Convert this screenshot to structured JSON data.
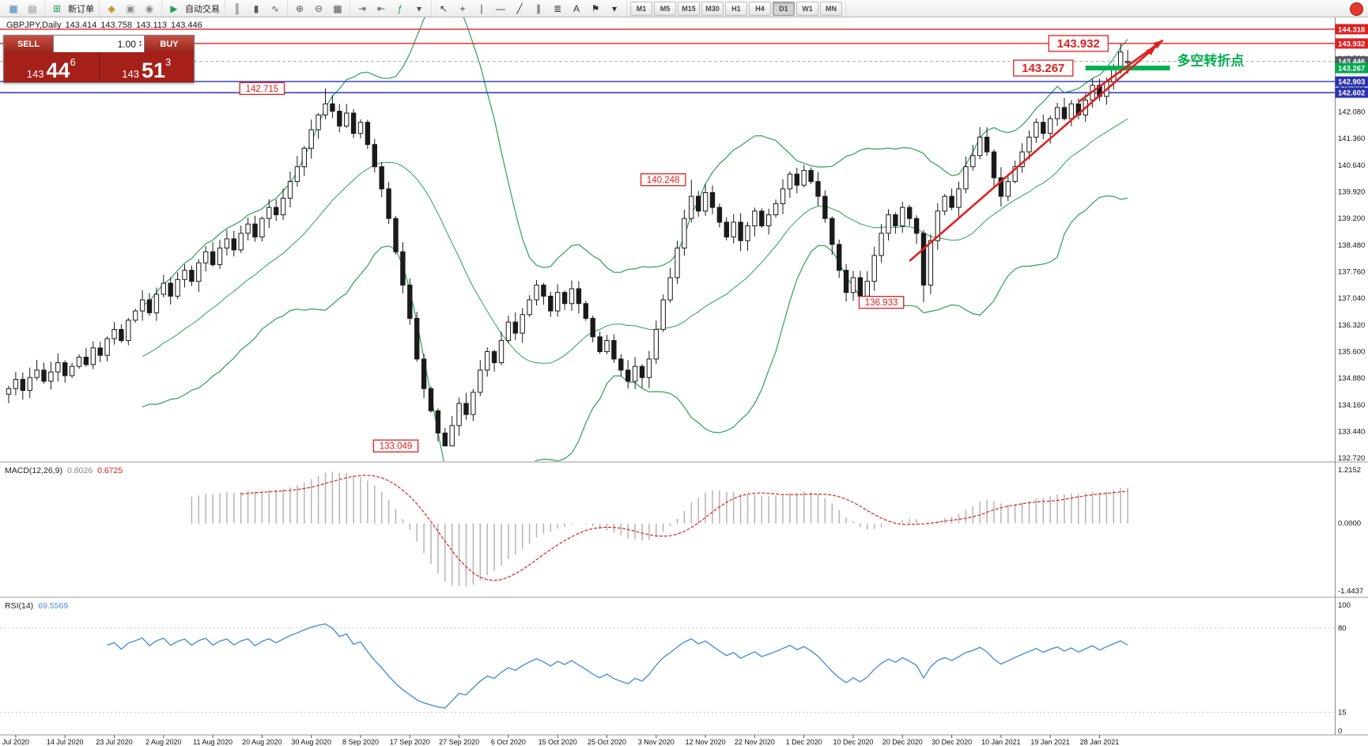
{
  "toolbar": {
    "groups": [
      {
        "items": [
          {
            "name": "new-chart-icon",
            "glyph": "▦",
            "color": "#4a7ebb"
          },
          {
            "name": "profiles-icon",
            "glyph": "▤",
            "color": "#8a8a8a"
          }
        ]
      },
      {
        "items": [
          {
            "name": "new-order-button",
            "glyph": "⊞",
            "color": "#1f9d55",
            "label": "新订单"
          }
        ]
      },
      {
        "items": [
          {
            "name": "expert-advisors-icon",
            "glyph": "◆",
            "color": "#c09a2e"
          },
          {
            "name": "data-window-icon",
            "glyph": "▣",
            "color": "#8a8a8a"
          },
          {
            "name": "strategy-tester-icon",
            "glyph": "◉",
            "color": "#8a8a8a"
          }
        ]
      },
      {
        "items": [
          {
            "name": "autotrading-button",
            "glyph": "▶",
            "color": "#1f9d55",
            "label": "自动交易"
          }
        ]
      },
      {
        "items": [
          {
            "name": "bar-chart-icon",
            "glyph": "║",
            "color": "#555555"
          },
          {
            "name": "candlestick-chart-icon",
            "glyph": "▮",
            "color": "#555555"
          },
          {
            "name": "line-chart-icon",
            "glyph": "∿",
            "color": "#555555"
          }
        ]
      },
      {
        "items": [
          {
            "name": "zoom-in-icon",
            "glyph": "⊕",
            "color": "#555555"
          },
          {
            "name": "zoom-out-icon",
            "glyph": "⊖",
            "color": "#555555"
          },
          {
            "name": "tile-windows-icon",
            "glyph": "▦",
            "color": "#555555"
          }
        ]
      },
      {
        "items": [
          {
            "name": "auto-scroll-icon",
            "glyph": "⇥",
            "color": "#555555"
          },
          {
            "name": "chart-shift-icon",
            "glyph": "⇤",
            "color": "#555555"
          },
          {
            "name": "indicators-icon",
            "glyph": "ƒ",
            "color": "#1f9d55"
          },
          {
            "name": "indicators-dropdown",
            "glyph": "▾",
            "color": "#555555"
          }
        ]
      },
      {
        "items": [
          {
            "name": "cursor-icon",
            "glyph": "↖",
            "color": "#333333"
          },
          {
            "name": "crosshair-icon",
            "glyph": "+",
            "color": "#333333"
          },
          {
            "name": "vertical-line-icon",
            "glyph": "∣",
            "color": "#333333"
          },
          {
            "name": "horizontal-line-icon",
            "glyph": "―",
            "color": "#333333"
          },
          {
            "name": "trendline-icon",
            "glyph": "╱",
            "color": "#333333"
          },
          {
            "name": "channel-icon",
            "glyph": "∥",
            "color": "#333333"
          },
          {
            "name": "fibonacci-icon",
            "glyph": "≣",
            "color": "#333333"
          },
          {
            "name": "text-icon",
            "glyph": "A",
            "color": "#333333"
          },
          {
            "name": "label-icon",
            "glyph": "⚑",
            "color": "#333333"
          },
          {
            "name": "shapes-dropdown",
            "glyph": "▾",
            "color": "#333333"
          }
        ]
      }
    ],
    "timeframes": {
      "items": [
        {
          "name": "timeframe-m1",
          "label": "M1",
          "active": false
        },
        {
          "name": "timeframe-m5",
          "label": "M5",
          "active": false
        },
        {
          "name": "timeframe-m15",
          "label": "M15",
          "active": false
        },
        {
          "name": "timeframe-m30",
          "label": "M30",
          "active": false
        },
        {
          "name": "timeframe-h1",
          "label": "H1",
          "active": false
        },
        {
          "name": "timeframe-h4",
          "label": "H4",
          "active": false
        },
        {
          "name": "timeframe-d1",
          "label": "D1",
          "active": true
        },
        {
          "name": "timeframe-w1",
          "label": "W1",
          "active": false
        },
        {
          "name": "timeframe-mn",
          "label": "MN",
          "active": false
        }
      ]
    }
  },
  "notification_badge": {
    "color": "#e4392f"
  },
  "chart": {
    "symbol_period": "GBPJPY,Daily",
    "open": "143.414",
    "high": "143.758",
    "low": "143.113",
    "close": "143.446",
    "one_click": {
      "sell_label": "SELL",
      "buy_label": "BUY",
      "volume": "1.00",
      "sell_main": "143",
      "sell_pips": "44",
      "sell_point": "6",
      "buy_main": "143",
      "buy_pips": "51",
      "buy_point": "3"
    }
  },
  "chart_data": {
    "type": "candlestick",
    "symbol": "GBPJPY",
    "period": "Daily",
    "price_range": [
      132.68,
      144.53
    ],
    "candle_up_color": "#ffffff",
    "candle_down_color": "#1a1a1a",
    "candle_border_color": "#1a1a1a",
    "closes": [
      134.6,
      134.85,
      134.55,
      134.9,
      135.1,
      134.8,
      135.05,
      135.3,
      134.95,
      135.2,
      135.45,
      135.25,
      135.7,
      135.5,
      135.95,
      136.2,
      135.9,
      136.45,
      136.7,
      137.0,
      136.65,
      137.15,
      137.45,
      137.1,
      137.55,
      137.8,
      137.5,
      138.0,
      138.3,
      137.95,
      138.4,
      138.65,
      138.35,
      138.8,
      139.05,
      138.7,
      139.2,
      139.5,
      139.3,
      139.75,
      140.2,
      140.6,
      141.1,
      141.6,
      142.0,
      142.3,
      142.1,
      141.7,
      142.05,
      141.5,
      141.8,
      141.2,
      140.6,
      140.0,
      139.2,
      138.3,
      137.4,
      136.5,
      135.4,
      134.6,
      134.0,
      133.4,
      133.05,
      133.6,
      134.2,
      133.9,
      134.5,
      135.1,
      135.6,
      135.3,
      135.9,
      136.4,
      136.1,
      136.6,
      137.0,
      137.4,
      137.1,
      136.7,
      137.2,
      136.9,
      137.3,
      136.9,
      136.5,
      136.0,
      135.6,
      135.9,
      135.4,
      135.1,
      134.8,
      135.2,
      134.9,
      135.4,
      136.2,
      137.0,
      137.6,
      138.4,
      139.2,
      139.8,
      139.4,
      139.9,
      139.5,
      139.1,
      138.7,
      139.1,
      138.6,
      139.0,
      139.4,
      139.0,
      139.3,
      139.6,
      140.0,
      140.4,
      140.1,
      140.5,
      140.2,
      139.8,
      139.2,
      138.5,
      137.8,
      137.2,
      137.6,
      137.1,
      137.5,
      138.2,
      138.8,
      139.3,
      139.0,
      139.5,
      139.2,
      138.8,
      137.4,
      138.6,
      139.4,
      139.8,
      139.5,
      140.0,
      140.6,
      140.9,
      141.4,
      141.0,
      140.3,
      139.8,
      140.2,
      140.6,
      141.0,
      141.4,
      141.8,
      141.5,
      141.9,
      142.2,
      141.9,
      142.3,
      142.0,
      142.4,
      142.8,
      142.5,
      142.9,
      143.3,
      143.7,
      143.446
    ],
    "key_candles": [
      {
        "i": 45,
        "h": 142.715
      },
      {
        "i": 62,
        "l": 133.049
      },
      {
        "i": 97,
        "h": 140.248
      },
      {
        "i": 130,
        "l": 136.933
      },
      {
        "i": 158,
        "h": 143.932
      },
      {
        "i": 159,
        "o": 143.414,
        "h": 143.758,
        "l": 143.113,
        "c": 143.446
      }
    ],
    "time_labels": [
      {
        "i": 1,
        "label": "Jul 2020"
      },
      {
        "i": 8,
        "label": "14 Jul 2020"
      },
      {
        "i": 15,
        "label": "23 Jul 2020"
      },
      {
        "i": 22,
        "label": "2 Aug 2020"
      },
      {
        "i": 29,
        "label": "11 Aug 2020"
      },
      {
        "i": 36,
        "label": "20 Aug 2020"
      },
      {
        "i": 43,
        "label": "30 Aug 2020"
      },
      {
        "i": 50,
        "label": "8 Sep 2020"
      },
      {
        "i": 57,
        "label": "17 Sep 2020"
      },
      {
        "i": 64,
        "label": "27 Sep 2020"
      },
      {
        "i": 71,
        "label": "6 Oct 2020"
      },
      {
        "i": 78,
        "label": "15 Oct 2020"
      },
      {
        "i": 85,
        "label": "25 Oct 2020"
      },
      {
        "i": 92,
        "label": "3 Nov 2020"
      },
      {
        "i": 99,
        "label": "12 Nov 2020"
      },
      {
        "i": 106,
        "label": "22 Nov 2020"
      },
      {
        "i": 113,
        "label": "1 Dec 2020"
      },
      {
        "i": 120,
        "label": "10 Dec 2020"
      },
      {
        "i": 127,
        "label": "20 Dec 2020"
      },
      {
        "i": 134,
        "label": "30 Dec 2020"
      },
      {
        "i": 141,
        "label": "10 Jan 2021"
      },
      {
        "i": 148,
        "label": "19 Jan 2021"
      },
      {
        "i": 155,
        "label": "28 Jan 2021"
      }
    ],
    "price_gridlines": [
      144.24,
      143.52,
      142.8,
      142.08,
      141.36,
      140.64,
      139.92,
      139.2,
      138.48,
      137.76,
      137.04,
      136.32,
      135.6,
      134.88,
      134.16,
      133.44,
      132.72
    ],
    "price_markers": [
      {
        "value": "144.318",
        "p": 144.318,
        "color": "#e02020"
      },
      {
        "value": "143.932",
        "p": 143.932,
        "color": "#e02020"
      },
      {
        "value": "143.446",
        "p": 143.446,
        "color": "#565b63"
      },
      {
        "value": "143.267",
        "p": 143.267,
        "color": "#00a84f"
      },
      {
        "value": "142.903",
        "p": 142.903,
        "color": "#2b32b2"
      },
      {
        "value": "142.602",
        "p": 142.602,
        "color": "#2b32b2"
      }
    ],
    "hlines": [
      {
        "p": 144.318,
        "color": "#e02020"
      },
      {
        "p": 143.932,
        "color": "#e02020"
      },
      {
        "p": 142.903,
        "color": "#2b32b2"
      },
      {
        "p": 142.602,
        "color": "#2b32b2"
      }
    ],
    "bid_line": {
      "p": 143.446,
      "color": "#aaaaaa"
    },
    "support_segment": {
      "p": 143.267,
      "i1": 153,
      "i2": 165,
      "color": "#00b050"
    },
    "trend_color": "#e02020",
    "trend_arrows": [
      {
        "i1": 128,
        "p1": 138.05,
        "i2": 163,
        "p2": 143.85
      },
      {
        "i1": 152,
        "p1": 142.35,
        "i2": 164,
        "p2": 144.02
      }
    ],
    "annotations": [
      {
        "text": "142.715",
        "i": 36,
        "p": 142.715,
        "big": false
      },
      {
        "text": "133.049",
        "i": 55,
        "p": 133.049,
        "big": false
      },
      {
        "text": "140.248",
        "i": 93,
        "p": 140.248,
        "big": false
      },
      {
        "text": "136.933",
        "i": 124,
        "p": 136.933,
        "big": false
      },
      {
        "text": "143.267",
        "i": 147,
        "p": 143.267,
        "big": true
      },
      {
        "text": "143.932",
        "i": 152,
        "p": 143.932,
        "big": true
      }
    ],
    "note": {
      "text": "多空转折点",
      "i": 166,
      "p": 143.47,
      "color": "#00b050"
    },
    "indicators": {
      "bollinger": {
        "period": 20,
        "deviation": 2,
        "color": "#2ba05a"
      },
      "macd": {
        "label": "MACD(12,26,9)",
        "value_main": "0.8026",
        "value_signal": "0.6725",
        "axis_max": "1.2152",
        "axis_zero": "0.0000",
        "axis_min": "-1.4437",
        "histogram_color": "#b4b4b4",
        "signal_color": "#e02020",
        "fast": 12,
        "slow": 26,
        "signal": 9
      },
      "rsi": {
        "label": "RSI(14)",
        "value": "69.5569",
        "period": 14,
        "color": "#4a90d9",
        "axis_top": "100",
        "level_high": "80",
        "level_low": "15",
        "axis_bottom": "0",
        "range": [
          0,
          100
        ]
      }
    }
  }
}
